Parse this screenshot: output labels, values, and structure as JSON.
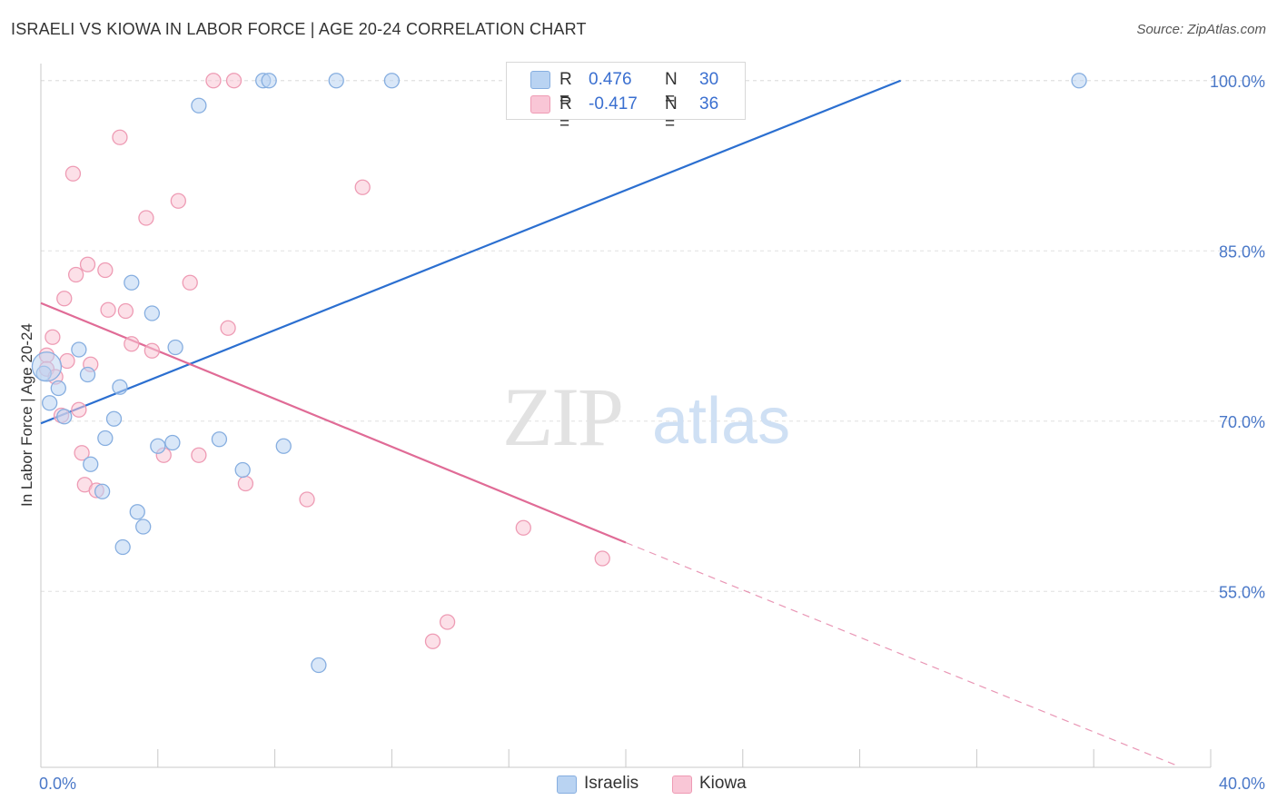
{
  "header": {
    "title": "ISRAELI VS KIOWA IN LABOR FORCE | AGE 20-24 CORRELATION CHART",
    "source": "Source: ZipAtlas.com"
  },
  "watermark": {
    "zip": "ZIP",
    "atlas": "atlas"
  },
  "legend": {
    "r_label": "R =",
    "n_label": "N =",
    "rows": [
      {
        "name": "Israelis",
        "r": "0.476",
        "n": "30"
      },
      {
        "name": "Kiowa",
        "r": "-0.417",
        "n": "36"
      }
    ]
  },
  "colors": {
    "israelis_fill": "#b9d3f2",
    "israelis_stroke": "#86aee0",
    "israelis_line": "#2b6fd0",
    "kiowa_fill": "#f9c6d6",
    "kiowa_stroke": "#ee9bb4",
    "kiowa_line": "#e06b96",
    "tick_text": "#4a78c8",
    "grid": "#e0e0e0"
  },
  "chart_data": {
    "type": "scatter",
    "title": "ISRAELI VS KIOWA IN LABOR FORCE | AGE 20-24 CORRELATION CHART",
    "xlabel": "",
    "ylabel": "In Labor Force | Age 20-24",
    "xlim": [
      0,
      40
    ],
    "ylim": [
      39.5,
      101.5
    ],
    "x_tick_labels": [
      {
        "value": 0,
        "label": "0.0%"
      },
      {
        "value": 40,
        "label": "40.0%"
      }
    ],
    "x_minor_ticks": [
      0,
      4,
      8,
      12,
      16,
      20,
      24,
      28,
      32,
      36,
      40
    ],
    "y_ticks": [
      {
        "value": 55,
        "label": "55.0%"
      },
      {
        "value": 70,
        "label": "70.0%"
      },
      {
        "value": 85,
        "label": "85.0%"
      },
      {
        "value": 100,
        "label": "100.0%"
      }
    ],
    "gridlines": true,
    "series": [
      {
        "name": "Israelis",
        "points": [
          [
            0.1,
            74.2
          ],
          [
            0.3,
            71.6
          ],
          [
            0.6,
            72.9
          ],
          [
            0.8,
            70.4
          ],
          [
            1.3,
            76.3
          ],
          [
            1.6,
            74.1
          ],
          [
            1.7,
            66.2
          ],
          [
            2.1,
            63.8
          ],
          [
            2.2,
            68.5
          ],
          [
            2.5,
            70.2
          ],
          [
            2.7,
            73.0
          ],
          [
            2.8,
            58.9
          ],
          [
            3.1,
            82.2
          ],
          [
            3.3,
            62.0
          ],
          [
            3.5,
            60.7
          ],
          [
            3.8,
            79.5
          ],
          [
            4.0,
            67.8
          ],
          [
            4.5,
            68.1
          ],
          [
            4.6,
            76.5
          ],
          [
            5.4,
            97.8
          ],
          [
            6.1,
            68.4
          ],
          [
            6.9,
            65.7
          ],
          [
            7.6,
            100.0
          ],
          [
            7.8,
            100.0
          ],
          [
            8.3,
            67.8
          ],
          [
            9.5,
            48.5
          ],
          [
            10.1,
            100.0
          ],
          [
            12.0,
            100.0
          ],
          [
            35.5,
            100.0
          ],
          [
            0.2,
            74.8
          ]
        ],
        "trend": {
          "x": [
            0,
            29.4
          ],
          "y": [
            69.8,
            100.0
          ],
          "dashed": false
        }
      },
      {
        "name": "Kiowa",
        "points": [
          [
            0.2,
            75.8
          ],
          [
            0.2,
            74.6
          ],
          [
            0.4,
            77.4
          ],
          [
            0.5,
            73.9
          ],
          [
            0.7,
            70.5
          ],
          [
            0.8,
            80.8
          ],
          [
            0.9,
            75.3
          ],
          [
            1.1,
            91.8
          ],
          [
            1.2,
            82.9
          ],
          [
            1.3,
            71.0
          ],
          [
            1.4,
            67.2
          ],
          [
            1.5,
            64.4
          ],
          [
            1.6,
            83.8
          ],
          [
            1.7,
            75.0
          ],
          [
            1.9,
            63.9
          ],
          [
            2.2,
            83.3
          ],
          [
            2.3,
            79.8
          ],
          [
            2.7,
            95.0
          ],
          [
            2.9,
            79.7
          ],
          [
            3.1,
            76.8
          ],
          [
            3.6,
            87.9
          ],
          [
            3.8,
            76.2
          ],
          [
            4.2,
            67.0
          ],
          [
            4.7,
            89.4
          ],
          [
            5.1,
            82.2
          ],
          [
            5.4,
            67.0
          ],
          [
            5.9,
            100.0
          ],
          [
            6.4,
            78.2
          ],
          [
            6.6,
            100.0
          ],
          [
            7.0,
            64.5
          ],
          [
            9.1,
            63.1
          ],
          [
            11.0,
            90.6
          ],
          [
            13.4,
            50.6
          ],
          [
            13.9,
            52.3
          ],
          [
            16.5,
            60.6
          ],
          [
            19.2,
            57.9
          ]
        ],
        "trend": {
          "x": [
            0,
            20.0
          ],
          "y": [
            80.4,
            59.3
          ],
          "dashed": false
        },
        "trend_extension": {
          "x": [
            20.0,
            38.8
          ],
          "y": [
            59.3,
            39.7
          ],
          "dashed": true
        }
      }
    ]
  },
  "bottom_legend": [
    {
      "name": "Israelis"
    },
    {
      "name": "Kiowa"
    }
  ]
}
